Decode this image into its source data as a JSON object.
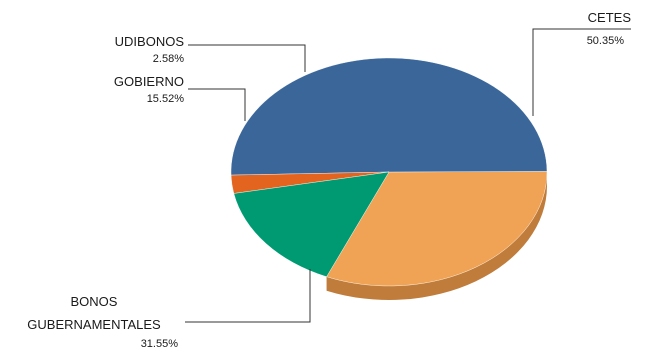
{
  "chart_data": {
    "type": "pie",
    "style": "3d",
    "legend": "none",
    "slices": [
      {
        "key": "cetes",
        "label": "CETES",
        "value": 50.35,
        "value_label": "50.35%",
        "color": "#3A6699",
        "side_color": "#2A4D78"
      },
      {
        "key": "bonos",
        "label": "BONOS GUBERNAMENTALES",
        "label_lines": [
          "BONOS",
          "GUBERNAMENTALES"
        ],
        "value": 31.55,
        "value_label": "31.55%",
        "color": "#F0A354",
        "side_color": "#C07C3A"
      },
      {
        "key": "gobierno",
        "label": "GOBIERNO",
        "value": 15.52,
        "value_label": "15.52%",
        "color": "#009A72",
        "side_color": "#007656"
      },
      {
        "key": "udibonos",
        "label": "UDIBONOS",
        "value": 2.58,
        "value_label": "2.58%",
        "color": "#E2641F",
        "side_color": "#B04D15"
      }
    ]
  }
}
